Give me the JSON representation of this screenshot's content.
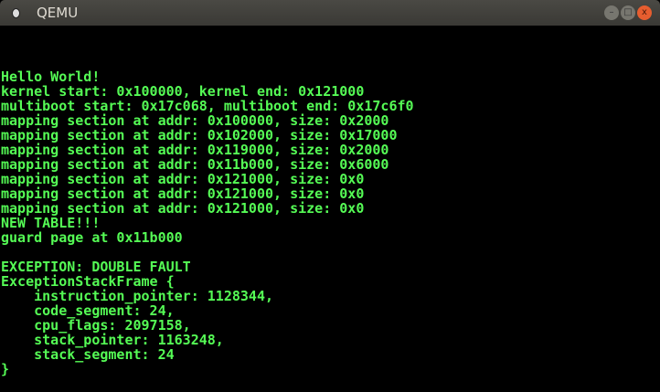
{
  "window": {
    "title": "QEMU",
    "icon": "qemu-app-icon",
    "minimize": "–",
    "maximize": "□",
    "close": "x"
  },
  "colors": {
    "text": "#55fc55",
    "background": "#000000",
    "close_button": "#e65d2f"
  },
  "console": {
    "lines": [
      "Hello World!",
      "kernel start: 0x100000, kernel end: 0x121000",
      "multiboot start: 0x17c068, multiboot end: 0x17c6f0",
      "mapping section at addr: 0x100000, size: 0x2000",
      "mapping section at addr: 0x102000, size: 0x17000",
      "mapping section at addr: 0x119000, size: 0x2000",
      "mapping section at addr: 0x11b000, size: 0x6000",
      "mapping section at addr: 0x121000, size: 0x0",
      "mapping section at addr: 0x121000, size: 0x0",
      "mapping section at addr: 0x121000, size: 0x0",
      "NEW TABLE!!!",
      "guard page at 0x11b000",
      "",
      "EXCEPTION: DOUBLE FAULT",
      "ExceptionStackFrame {",
      "    instruction_pointer: 1128344,",
      "    code_segment: 24,",
      "    cpu_flags: 2097158,",
      "    stack_pointer: 1163248,",
      "    stack_segment: 24",
      "}"
    ]
  }
}
